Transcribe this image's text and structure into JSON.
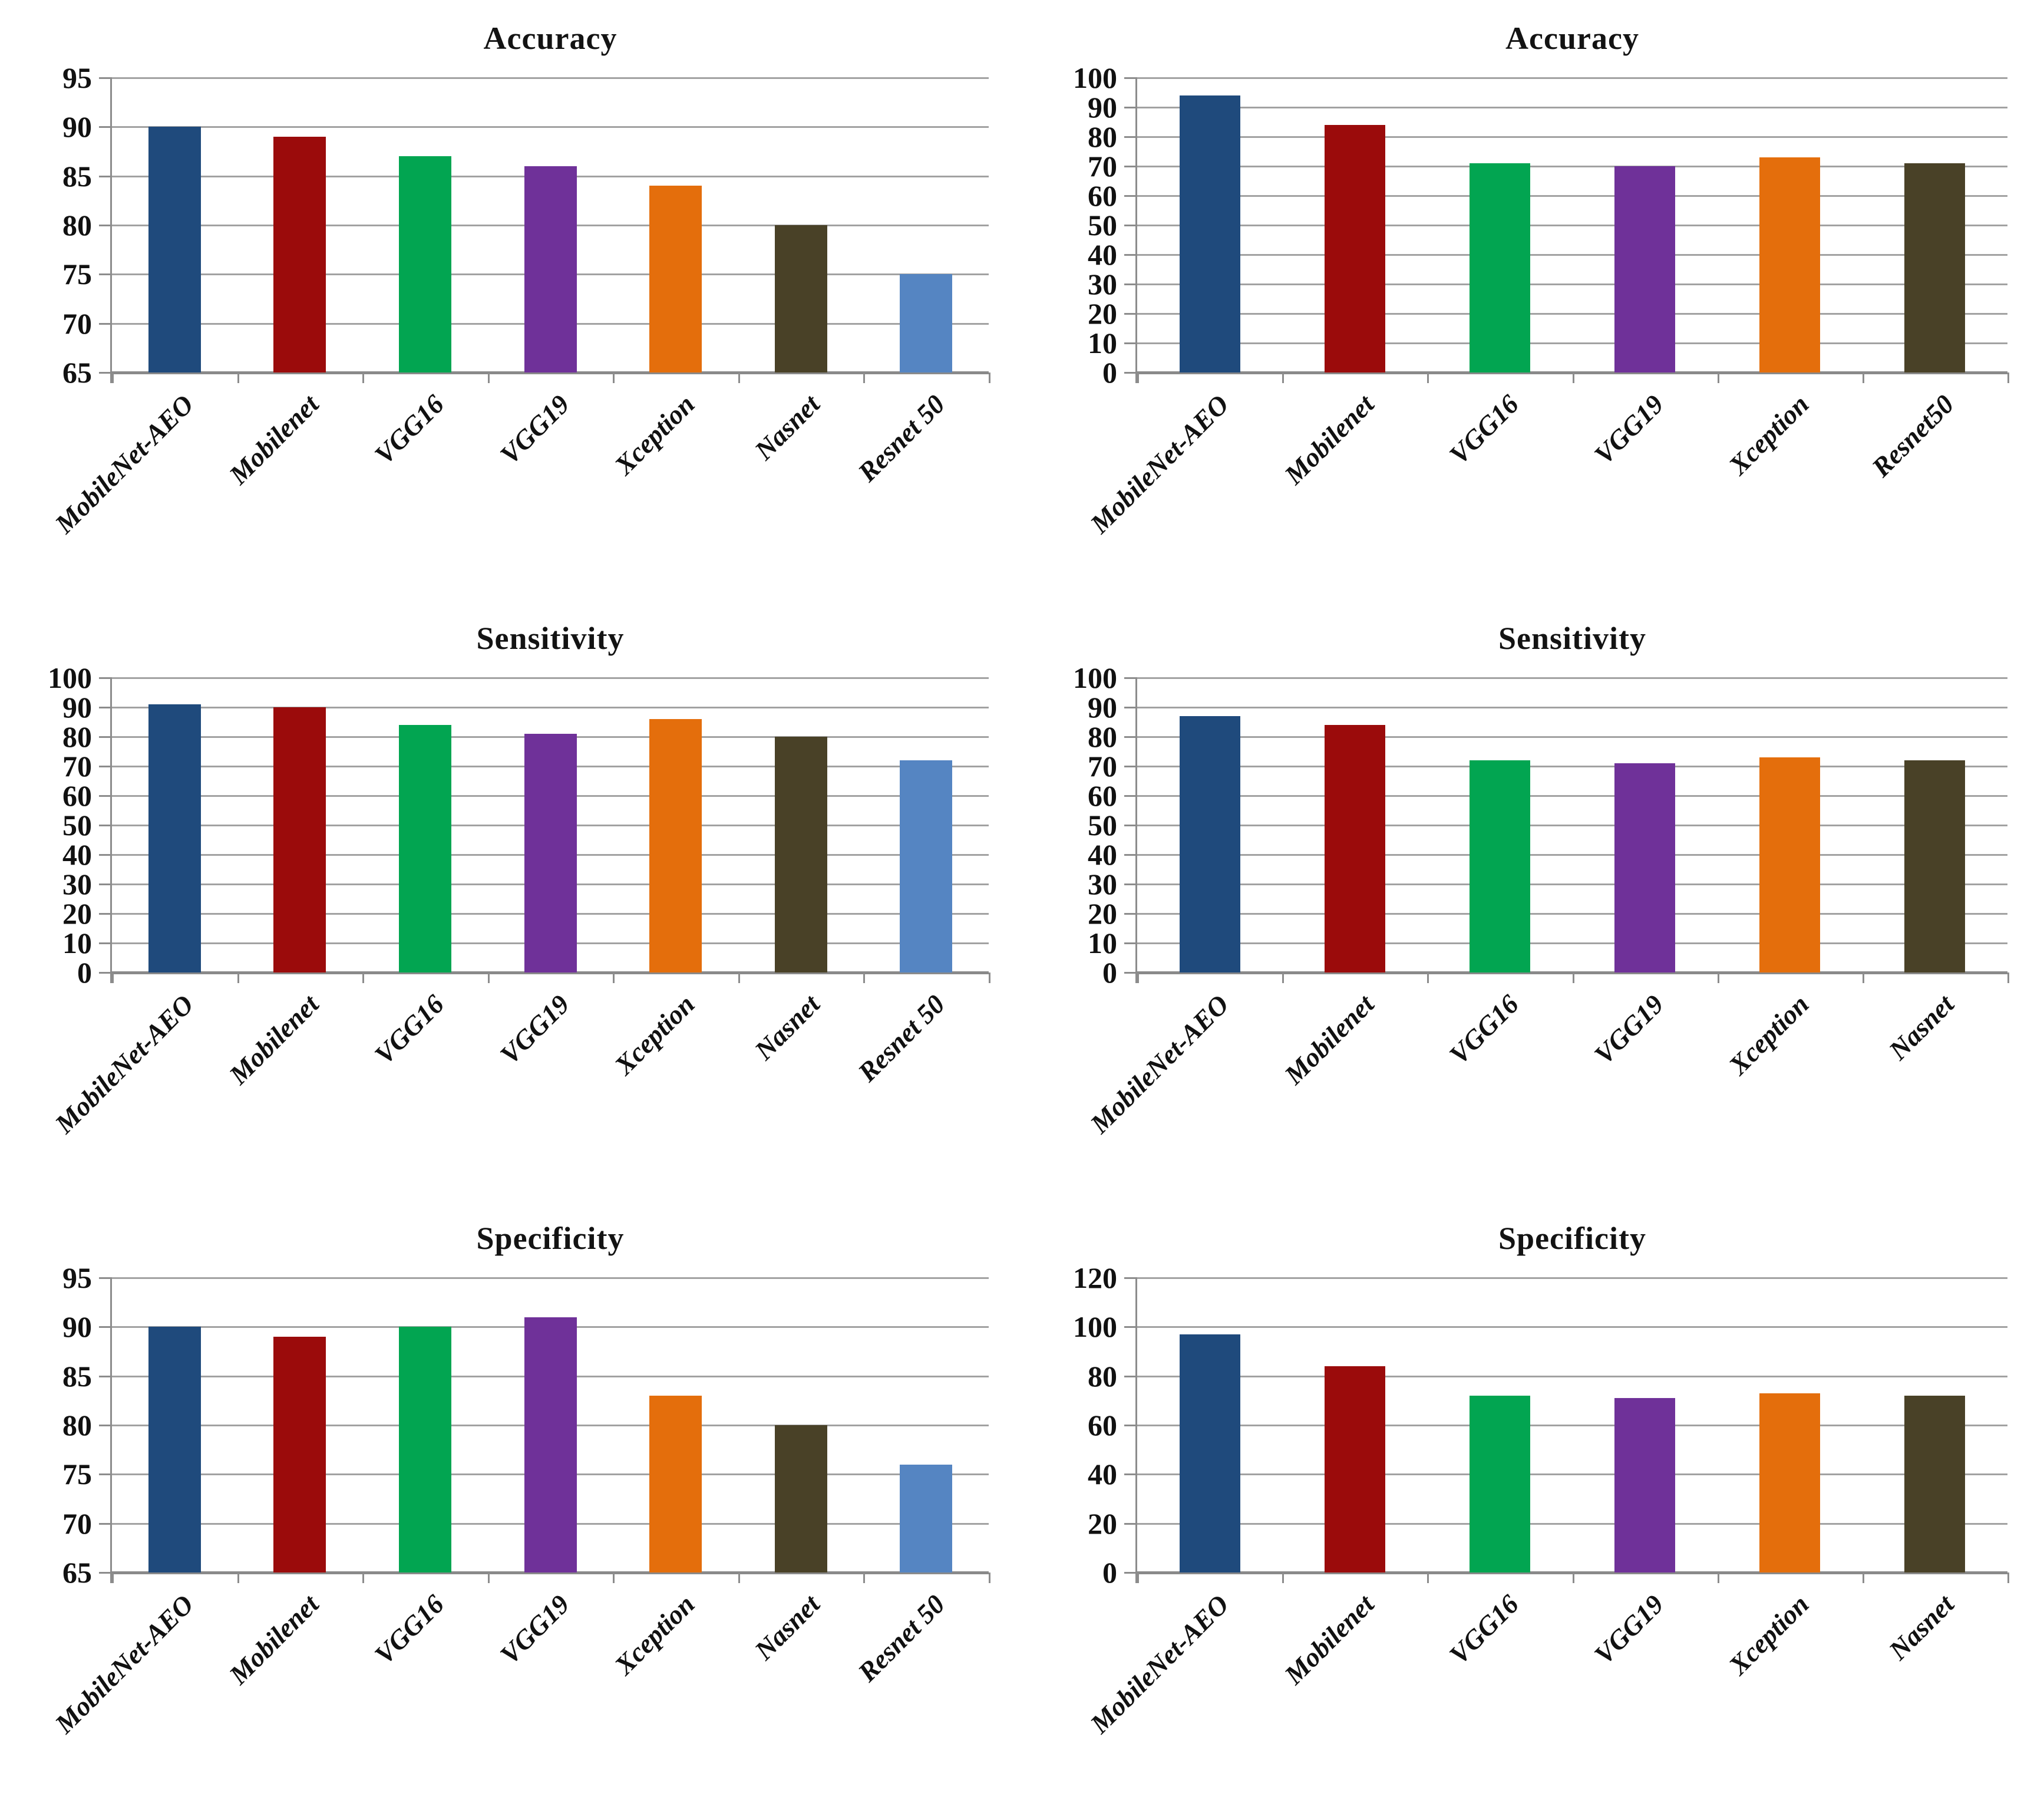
{
  "page": {
    "background": "#ffffff",
    "layout": "2x3 grid of bar charts",
    "legend": "none"
  },
  "palette": {
    "dark_blue": "#1F4A7C",
    "dark_red": "#9B0B0B",
    "green": "#02A551",
    "purple": "#6F3199",
    "orange": "#E46E0C",
    "olive": "#494127",
    "light_blue": "#5585C2",
    "gridline": "#a2a2a2",
    "axis": "#8c8c8c",
    "text": "#111111"
  },
  "chart_data": [
    {
      "type": "bar",
      "title": "Accuracy",
      "categories": [
        "MobileNet-AEO",
        "Mobilenet",
        "VGG16",
        "VGG19",
        "Xception",
        "Nasnet",
        "Resnet 50"
      ],
      "values": [
        90,
        89,
        87,
        86,
        84,
        80,
        75
      ],
      "bar_colors": [
        "#1F4A7C",
        "#9B0B0B",
        "#02A551",
        "#6F3199",
        "#E46E0C",
        "#494127",
        "#5585C2"
      ],
      "xlabel": "",
      "ylabel": "",
      "ylim": [
        65,
        95
      ],
      "ystep": 5,
      "yticks": [
        65,
        70,
        75,
        80,
        85,
        90,
        95
      ],
      "grid": true,
      "legend_position": "none"
    },
    {
      "type": "bar",
      "title": "Accuracy",
      "categories": [
        "MobileNet-AEO",
        "Mobilenet",
        "VGG16",
        "VGG19",
        "Xception",
        "Resnet50"
      ],
      "values": [
        94,
        84,
        71,
        70,
        73,
        71
      ],
      "bar_colors": [
        "#1F4A7C",
        "#9B0B0B",
        "#02A551",
        "#6F3199",
        "#E46E0C",
        "#494127"
      ],
      "xlabel": "",
      "ylabel": "",
      "ylim": [
        0,
        100
      ],
      "ystep": 10,
      "yticks": [
        0,
        10,
        20,
        30,
        40,
        50,
        60,
        70,
        80,
        90,
        100
      ],
      "grid": true,
      "legend_position": "none"
    },
    {
      "type": "bar",
      "title": "Sensitivity",
      "categories": [
        "MobileNet-AEO",
        "Mobilenet",
        "VGG16",
        "VGG19",
        "Xception",
        "Nasnet",
        "Resnet 50"
      ],
      "values": [
        91,
        90,
        84,
        81,
        86,
        80,
        72
      ],
      "bar_colors": [
        "#1F4A7C",
        "#9B0B0B",
        "#02A551",
        "#6F3199",
        "#E46E0C",
        "#494127",
        "#5585C2"
      ],
      "xlabel": "",
      "ylabel": "",
      "ylim": [
        0,
        100
      ],
      "ystep": 10,
      "yticks": [
        0,
        10,
        20,
        30,
        40,
        50,
        60,
        70,
        80,
        90,
        100
      ],
      "grid": true,
      "legend_position": "none"
    },
    {
      "type": "bar",
      "title": "Sensitivity",
      "categories": [
        "MobileNet-AEO",
        "Mobilenet",
        "VGG16",
        "VGG19",
        "Xception",
        "Nasnet"
      ],
      "values": [
        87,
        84,
        72,
        71,
        73,
        72
      ],
      "bar_colors": [
        "#1F4A7C",
        "#9B0B0B",
        "#02A551",
        "#6F3199",
        "#E46E0C",
        "#494127"
      ],
      "xlabel": "",
      "ylabel": "",
      "ylim": [
        0,
        100
      ],
      "ystep": 10,
      "yticks": [
        0,
        10,
        20,
        30,
        40,
        50,
        60,
        70,
        80,
        90,
        100
      ],
      "grid": true,
      "legend_position": "none"
    },
    {
      "type": "bar",
      "title": "Specificity",
      "categories": [
        "MobileNet-AEO",
        "Mobilenet",
        "VGG16",
        "VGG19",
        "Xception",
        "Nasnet",
        "Resnet 50"
      ],
      "values": [
        90,
        89,
        90,
        91,
        83,
        80,
        76
      ],
      "bar_colors": [
        "#1F4A7C",
        "#9B0B0B",
        "#02A551",
        "#6F3199",
        "#E46E0C",
        "#494127",
        "#5585C2"
      ],
      "xlabel": "",
      "ylabel": "",
      "ylim": [
        65,
        95
      ],
      "ystep": 5,
      "yticks": [
        65,
        70,
        75,
        80,
        85,
        90,
        95
      ],
      "grid": true,
      "legend_position": "none"
    },
    {
      "type": "bar",
      "title": "Specificity",
      "categories": [
        "MobileNet-AEO",
        "Mobilenet",
        "VGG16",
        "VGG19",
        "Xception",
        "Nasnet"
      ],
      "values": [
        97,
        84,
        72,
        71,
        73,
        72
      ],
      "bar_colors": [
        "#1F4A7C",
        "#9B0B0B",
        "#02A551",
        "#6F3199",
        "#E46E0C",
        "#494127"
      ],
      "xlabel": "",
      "ylabel": "",
      "ylim": [
        0,
        120
      ],
      "ystep": 20,
      "yticks": [
        0,
        20,
        40,
        60,
        80,
        100,
        120
      ],
      "grid": true,
      "legend_position": "none"
    }
  ]
}
